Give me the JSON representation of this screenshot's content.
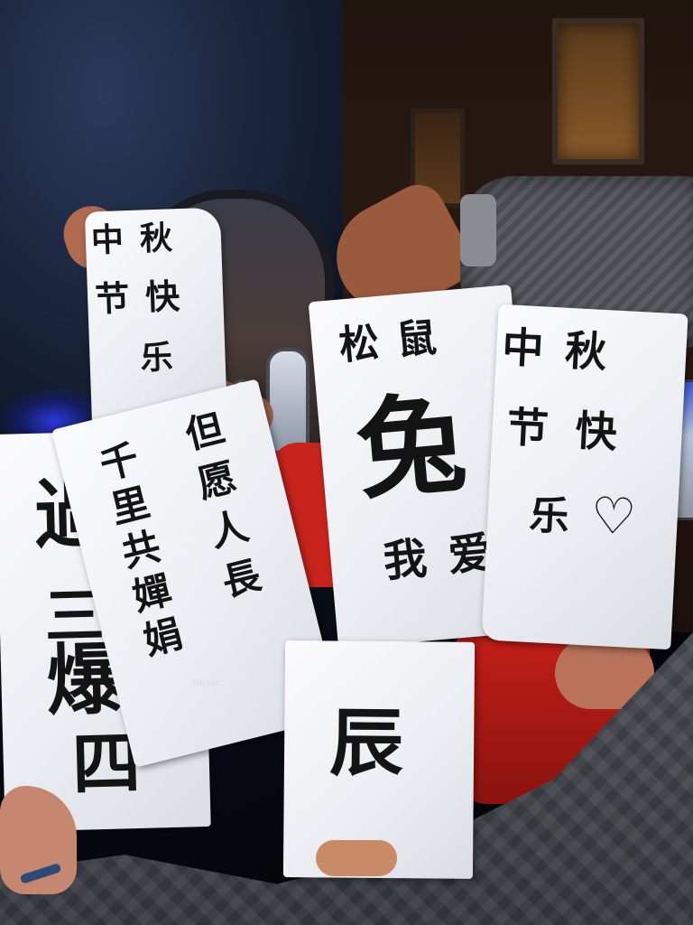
{
  "signs": {
    "top_left": {
      "line1": "中秋",
      "line2": "节快",
      "line3": "乐"
    },
    "left_large": {
      "line1": "過",
      "line2": "三",
      "line3": "爆",
      "line4": "四"
    },
    "middle_left": {
      "col1": "千里共嬋娟",
      "col2": "但愿人長"
    },
    "center": {
      "line1": "松鼠",
      "line2": "兔",
      "line3": "我爱"
    },
    "right": {
      "line1": "中秋",
      "line2": "节快",
      "line3": "乐",
      "heart": "♡"
    },
    "bottom_center": {
      "line1": "辰"
    }
  },
  "sticker_text": "Sticker",
  "colors": {
    "ink": "#141414",
    "paper": "#f1f2f5",
    "red_shirt": "#c9241c",
    "blue_light": "#2c36d8"
  }
}
